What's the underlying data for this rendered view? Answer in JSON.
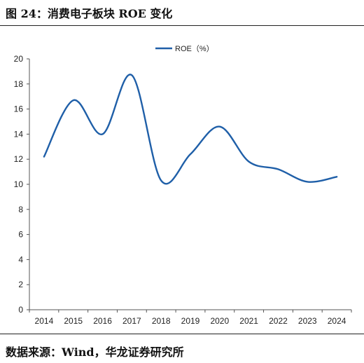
{
  "figure_title": "图 24：消费电子板块 ROE 变化",
  "source": "数据来源：Wind，华龙证券研究所",
  "colors": {
    "series": "#1f5fa8",
    "axis": "#555555"
  },
  "chart_data": {
    "type": "line",
    "x": [
      "2014",
      "2015",
      "2016",
      "2017",
      "2018",
      "2019",
      "2020",
      "2021",
      "2022",
      "2023",
      "2024"
    ],
    "series": [
      {
        "name": "ROE（%）",
        "values": [
          12.2,
          16.7,
          14.0,
          18.7,
          10.3,
          12.4,
          14.6,
          11.8,
          11.2,
          10.2,
          10.6
        ]
      }
    ],
    "ylim": [
      0,
      20
    ],
    "yticks": [
      0,
      2,
      4,
      6,
      8,
      10,
      12,
      14,
      16,
      18,
      20
    ],
    "xlabel": "",
    "ylabel": "",
    "legend": "top-center",
    "grid": false
  }
}
